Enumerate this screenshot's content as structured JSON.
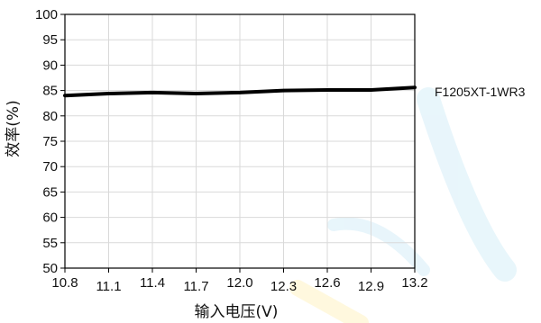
{
  "chart_data": {
    "type": "line",
    "xlabel": "输入电压(V)",
    "ylabel": "效率(%)",
    "xlim": [
      10.8,
      13.2
    ],
    "ylim": [
      50,
      100
    ],
    "grid": true,
    "x_ticks": [
      "10.8",
      "11.1",
      "11.4",
      "11.7",
      "12.0",
      "12.3",
      "12.6",
      "12.9",
      "13.2"
    ],
    "y_ticks": [
      "50",
      "55",
      "60",
      "65",
      "70",
      "75",
      "80",
      "85",
      "90",
      "95",
      "100"
    ],
    "series": [
      {
        "name": "F1205XT-1WR3",
        "x": [
          10.8,
          11.1,
          11.4,
          11.7,
          12.0,
          12.3,
          12.6,
          12.9,
          13.2
        ],
        "y": [
          84.0,
          84.4,
          84.6,
          84.4,
          84.6,
          85.0,
          85.1,
          85.1,
          85.6
        ]
      }
    ]
  },
  "colors": {
    "line": "#000000",
    "grid": "#d9d9d9",
    "axis": "#000000",
    "watermark": "#d6eef8"
  }
}
